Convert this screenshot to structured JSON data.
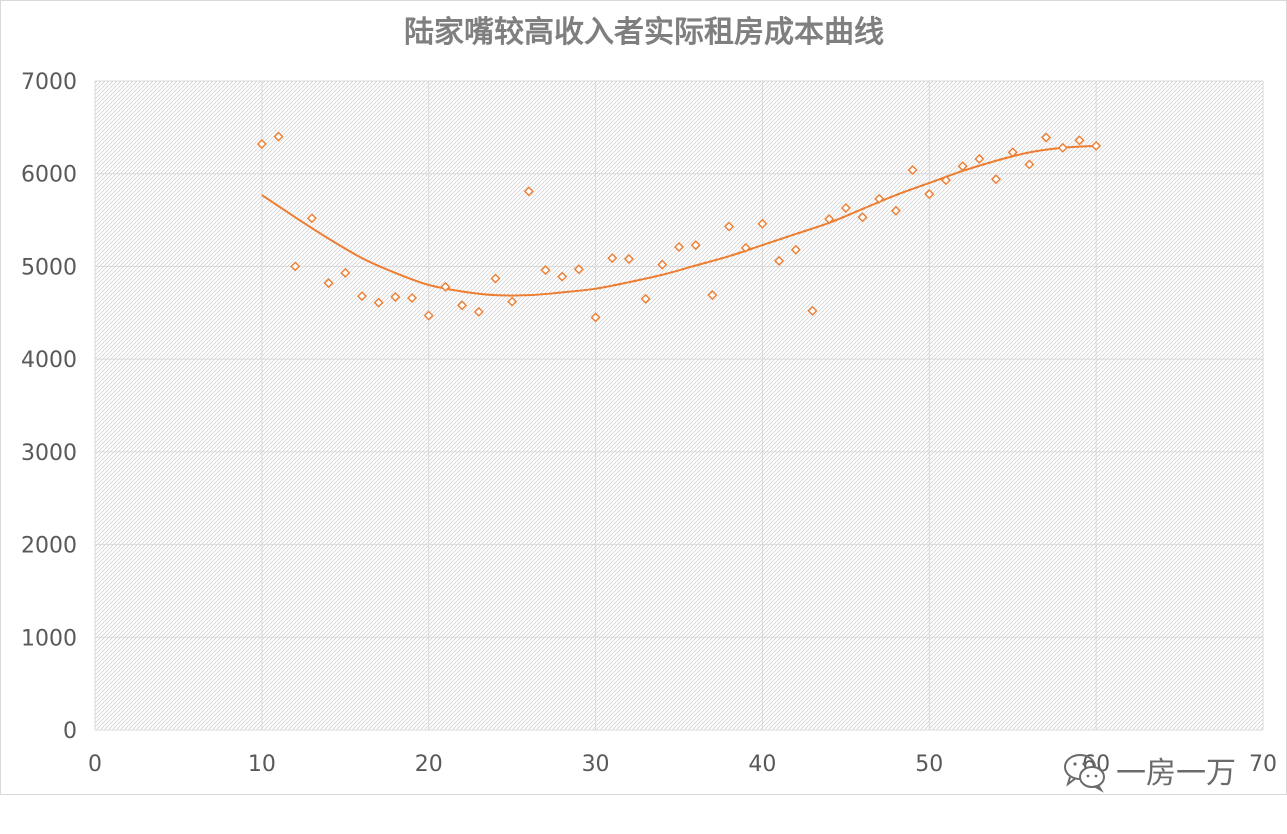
{
  "chart_data": {
    "type": "scatter",
    "title": "陆家嘴较高收入者实际租房成本曲线",
    "xlabel": "",
    "ylabel": "",
    "xlim": [
      0,
      70
    ],
    "ylim": [
      0,
      7000
    ],
    "x_ticks": [
      0,
      10,
      20,
      30,
      40,
      50,
      60,
      70
    ],
    "y_ticks": [
      0,
      1000,
      2000,
      3000,
      4000,
      5000,
      6000,
      7000
    ],
    "grid": true,
    "legend": "none",
    "marker": "diamond-hollow",
    "marker_color": "#ed7d31",
    "trend_color": "#ed7d31",
    "trendline": "polynomial",
    "series": [
      {
        "points": [
          [
            10,
            6320
          ],
          [
            11,
            6400
          ],
          [
            12,
            5000
          ],
          [
            13,
            5520
          ],
          [
            14,
            4820
          ],
          [
            15,
            4930
          ],
          [
            16,
            4680
          ],
          [
            17,
            4610
          ],
          [
            18,
            4670
          ],
          [
            19,
            4660
          ],
          [
            20,
            4470
          ],
          [
            21,
            4780
          ],
          [
            22,
            4580
          ],
          [
            23,
            4510
          ],
          [
            24,
            4870
          ],
          [
            25,
            4620
          ],
          [
            26,
            5810
          ],
          [
            27,
            4960
          ],
          [
            28,
            4890
          ],
          [
            29,
            4970
          ],
          [
            30,
            4450
          ],
          [
            31,
            5090
          ],
          [
            32,
            5080
          ],
          [
            33,
            4650
          ],
          [
            34,
            5020
          ],
          [
            35,
            5210
          ],
          [
            36,
            5230
          ],
          [
            37,
            4690
          ],
          [
            38,
            5430
          ],
          [
            39,
            5200
          ],
          [
            40,
            5460
          ],
          [
            41,
            5060
          ],
          [
            42,
            5180
          ],
          [
            43,
            4520
          ],
          [
            44,
            5510
          ],
          [
            45,
            5630
          ],
          [
            46,
            5530
          ],
          [
            47,
            5730
          ],
          [
            48,
            5600
          ],
          [
            49,
            6040
          ],
          [
            50,
            5780
          ],
          [
            51,
            5930
          ],
          [
            52,
            6080
          ],
          [
            53,
            6160
          ],
          [
            54,
            5940
          ],
          [
            55,
            6230
          ],
          [
            56,
            6100
          ],
          [
            57,
            6390
          ],
          [
            58,
            6280
          ],
          [
            59,
            6360
          ],
          [
            60,
            6300
          ]
        ],
        "trend_points": [
          [
            10,
            5770
          ],
          [
            12,
            5530
          ],
          [
            14,
            5300
          ],
          [
            16,
            5090
          ],
          [
            18,
            4930
          ],
          [
            20,
            4800
          ],
          [
            22,
            4730
          ],
          [
            24,
            4690
          ],
          [
            26,
            4690
          ],
          [
            28,
            4720
          ],
          [
            30,
            4760
          ],
          [
            32,
            4830
          ],
          [
            34,
            4910
          ],
          [
            36,
            5010
          ],
          [
            38,
            5110
          ],
          [
            40,
            5230
          ],
          [
            42,
            5350
          ],
          [
            44,
            5470
          ],
          [
            46,
            5620
          ],
          [
            48,
            5770
          ],
          [
            50,
            5900
          ],
          [
            52,
            6030
          ],
          [
            54,
            6140
          ],
          [
            56,
            6230
          ],
          [
            58,
            6280
          ],
          [
            60,
            6300
          ]
        ]
      }
    ]
  },
  "watermark": {
    "text": "一房一万",
    "icon": "wechat-icon"
  }
}
